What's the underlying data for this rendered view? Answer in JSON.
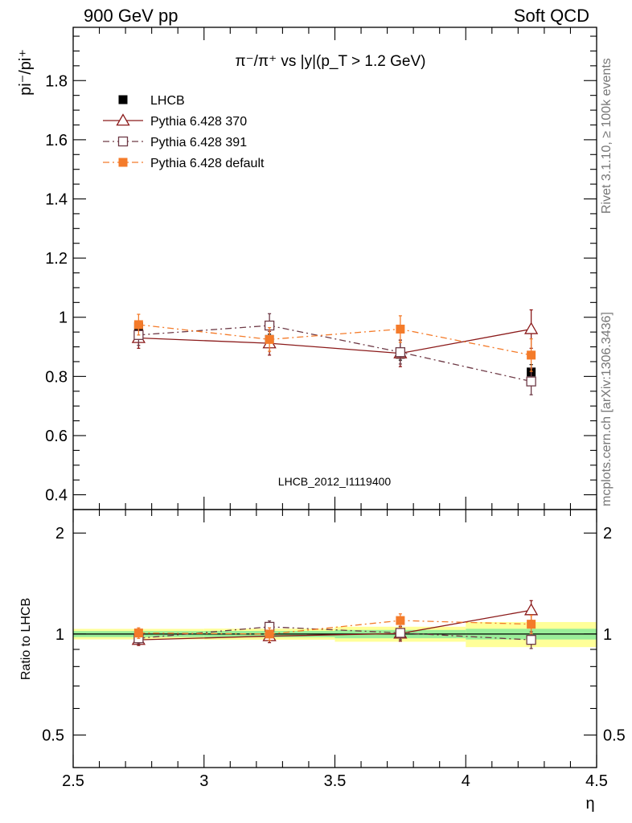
{
  "header": {
    "left": "900 GeV pp",
    "right": "Soft QCD"
  },
  "side_labels": {
    "rivet": "Rivet 3.1.10, ≥ 100k events",
    "source": "mcplots.cern.ch [arXiv:1306.3436]"
  },
  "chart_data": {
    "type": "scatter",
    "title": "π⁻/π⁺ vs |y|(p_T > 1.2 GeV)",
    "watermark": "LHCB_2012_I1119400",
    "xlabel": "η",
    "ylabel": "pi⁻/pi⁺",
    "ratio_ylabel": "Ratio to LHCB",
    "xlim": [
      2.5,
      4.5
    ],
    "ylim": [
      0.35,
      1.98
    ],
    "ratio_ylim": [
      0.4,
      2.35
    ],
    "ratio_log_scale": true,
    "x_ticks": [
      "2.5",
      "3",
      "3.5",
      "4",
      "4.5"
    ],
    "y_ticks": [
      "0.4",
      "0.6",
      "0.8",
      "1",
      "1.2",
      "1.4",
      "1.6",
      "1.8"
    ],
    "ratio_ticks": [
      "0.5",
      "1",
      "2"
    ],
    "legend_position": "top-left",
    "x": [
      2.75,
      3.25,
      3.75,
      4.25
    ],
    "x_bins": [
      [
        2.5,
        3.0
      ],
      [
        3.0,
        3.5
      ],
      [
        3.5,
        4.0
      ],
      [
        4.0,
        4.5
      ]
    ],
    "series": [
      {
        "name": "LHCB",
        "color": "#000000",
        "marker": "filled-square",
        "line": "none",
        "values": [
          0.968,
          0.925,
          0.875,
          0.815
        ],
        "errors": [
          0.02,
          0.018,
          0.02,
          0.025
        ],
        "band_stat": [
          0.02,
          0.02,
          0.025,
          0.03
        ],
        "band_total": [
          0.035,
          0.035,
          0.045,
          0.07
        ]
      },
      {
        "name": "Pythia 6.428 370",
        "color": "#8b1a1a",
        "marker": "open-triangle",
        "line": "solid",
        "values": [
          0.93,
          0.912,
          0.878,
          0.96
        ],
        "errors": [
          0.035,
          0.04,
          0.045,
          0.065
        ]
      },
      {
        "name": "Pythia 6.428 391",
        "color": "#6e3a46",
        "marker": "open-square",
        "line": "dashdot",
        "values": [
          0.94,
          0.972,
          0.882,
          0.783
        ],
        "errors": [
          0.035,
          0.04,
          0.04,
          0.045
        ]
      },
      {
        "name": "Pythia 6.428 default",
        "color": "#f47b2a",
        "marker": "filled-square",
        "line": "dashdot",
        "values": [
          0.975,
          0.925,
          0.96,
          0.872
        ],
        "errors": [
          0.035,
          0.04,
          0.045,
          0.055
        ]
      }
    ]
  }
}
